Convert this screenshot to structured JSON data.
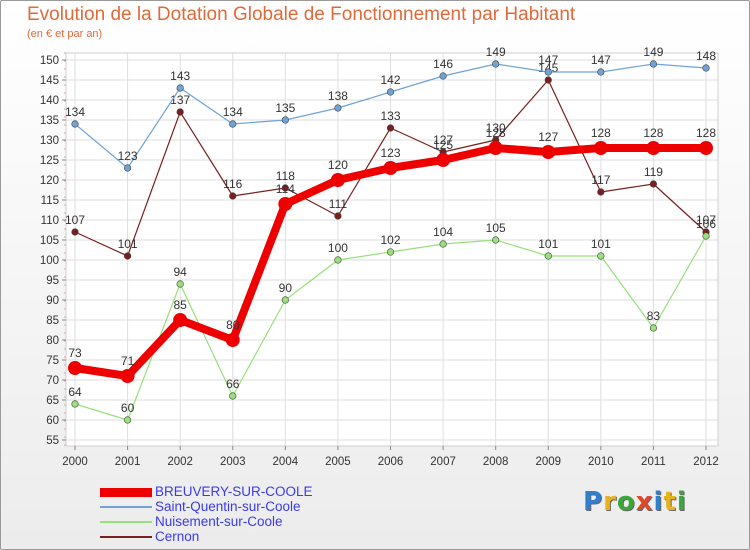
{
  "header": {
    "title": "Evolution de la Dotation Globale de Fonctionnement par Habitant",
    "subtitle": "(en € et par an)"
  },
  "logo": {
    "text": "Proxiti",
    "colors": [
      "#2e7fd0",
      "#e8b21f",
      "#3ca63c",
      "#e04a2a",
      "#2e7fd0",
      "#e8b21f",
      "#3ca63c"
    ]
  },
  "colors": {
    "background": "#ffffff",
    "plot_background": "#ffffff",
    "title": "#e06a3a",
    "legend_text": "#3a3aee"
  },
  "chart_data": {
    "type": "line",
    "title": "Evolution de la Dotation Globale de Fonctionnement par Habitant",
    "subtitle": "(en € et par an)",
    "xlabel": "",
    "ylabel": "",
    "x": [
      "2000",
      "2001",
      "2002",
      "2003",
      "2004",
      "2005",
      "2006",
      "2007",
      "2008",
      "2009",
      "2010",
      "2011",
      "2012"
    ],
    "ylim": [
      55,
      150
    ],
    "yticks": [
      55,
      60,
      65,
      70,
      75,
      80,
      85,
      90,
      95,
      100,
      105,
      110,
      115,
      120,
      125,
      130,
      135,
      140,
      145,
      150
    ],
    "grid": true,
    "legend_position": "bottom-left",
    "series": [
      {
        "name": "BREUVERY-SUR-COOLE",
        "color": "#ee0000",
        "values": [
          73,
          71,
          85,
          80,
          114,
          120,
          123,
          125,
          128,
          127,
          128,
          128,
          128
        ]
      },
      {
        "name": "Saint-Quentin-sur-Coole",
        "color": "#6fa3d6",
        "values": [
          134,
          123,
          143,
          134,
          135,
          138,
          142,
          146,
          149,
          147,
          147,
          149,
          148
        ]
      },
      {
        "name": "Nuisement-sur-Coole",
        "color": "#97e07a",
        "values": [
          64,
          60,
          94,
          66,
          90,
          100,
          102,
          104,
          105,
          101,
          101,
          83,
          106
        ]
      },
      {
        "name": "Cernon",
        "color": "#7a1f1f",
        "values": [
          107,
          101,
          137,
          116,
          118,
          111,
          133,
          127,
          130,
          145,
          117,
          119,
          107
        ]
      }
    ]
  }
}
